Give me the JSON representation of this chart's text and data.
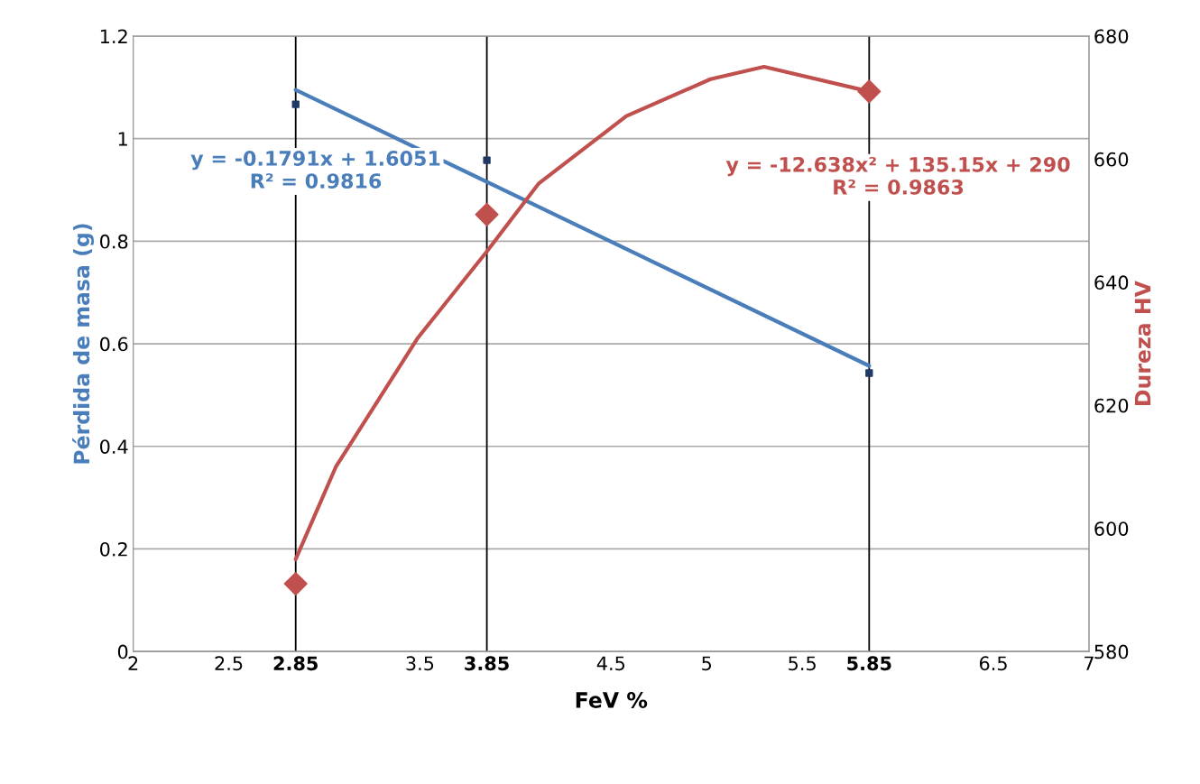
{
  "chart_data": {
    "type": "scatter",
    "xlabel": "FeV %",
    "ylabel": "Pérdida de masa (g)",
    "y2label": "Dureza HV",
    "xlim": [
      2,
      7
    ],
    "xticks": [
      2,
      2.5,
      {
        "value": 2.85,
        "label": "2.85"
      },
      3.5,
      {
        "value": 3.85,
        "label": "3.85"
      },
      4.5,
      5,
      5.5,
      {
        "value": 5.85,
        "label": "5.85"
      },
      6.5,
      7
    ],
    "ylim": [
      0,
      1.2
    ],
    "yticks": [
      0,
      0.2,
      0.4,
      0.6,
      0.8,
      1,
      1.2
    ],
    "y2lim": [
      580,
      680
    ],
    "y2ticks": [
      580,
      600,
      620,
      640,
      660,
      680
    ],
    "grid": "y",
    "legend": false,
    "series": [
      {
        "color": "#1f3864",
        "marker": "square",
        "x": [
          2.85,
          3.85,
          5.85
        ],
        "values": [
          1.067,
          0.958,
          0.543
        ]
      },
      {
        "type": "line",
        "color": "#4a7ebb",
        "marker": "none",
        "x": [
          2.85,
          5.85
        ],
        "values": [
          1.095,
          0.557
        ]
      },
      {
        "color": "#c0504d",
        "marker": "diamond",
        "axis": "y2",
        "x": [
          2.85,
          3.85,
          5.85
        ],
        "values": [
          591,
          651,
          671
        ]
      },
      {
        "type": "line",
        "color": "#c0504d",
        "marker": "none",
        "axis": "y2",
        "x": [
          2.85,
          3.06,
          3.49,
          3.85,
          4.12,
          4.58,
          5.02,
          5.3,
          5.85
        ],
        "values": [
          595,
          610,
          631,
          645,
          656,
          667,
          673,
          675,
          671
        ]
      }
    ],
    "ref_lines": [
      {
        "axis": "x",
        "value": 2.85,
        "color": "#000000"
      },
      {
        "axis": "x",
        "value": 3.85,
        "color": "#000000"
      },
      {
        "axis": "x",
        "value": 5.85,
        "color": "#000000"
      }
    ],
    "annotations": [
      "y = -0.1791x + 1.6051\nR² = 0.9816",
      "y = -12.638x² + 135.15x + 290\nR² = 0.9863"
    ]
  }
}
